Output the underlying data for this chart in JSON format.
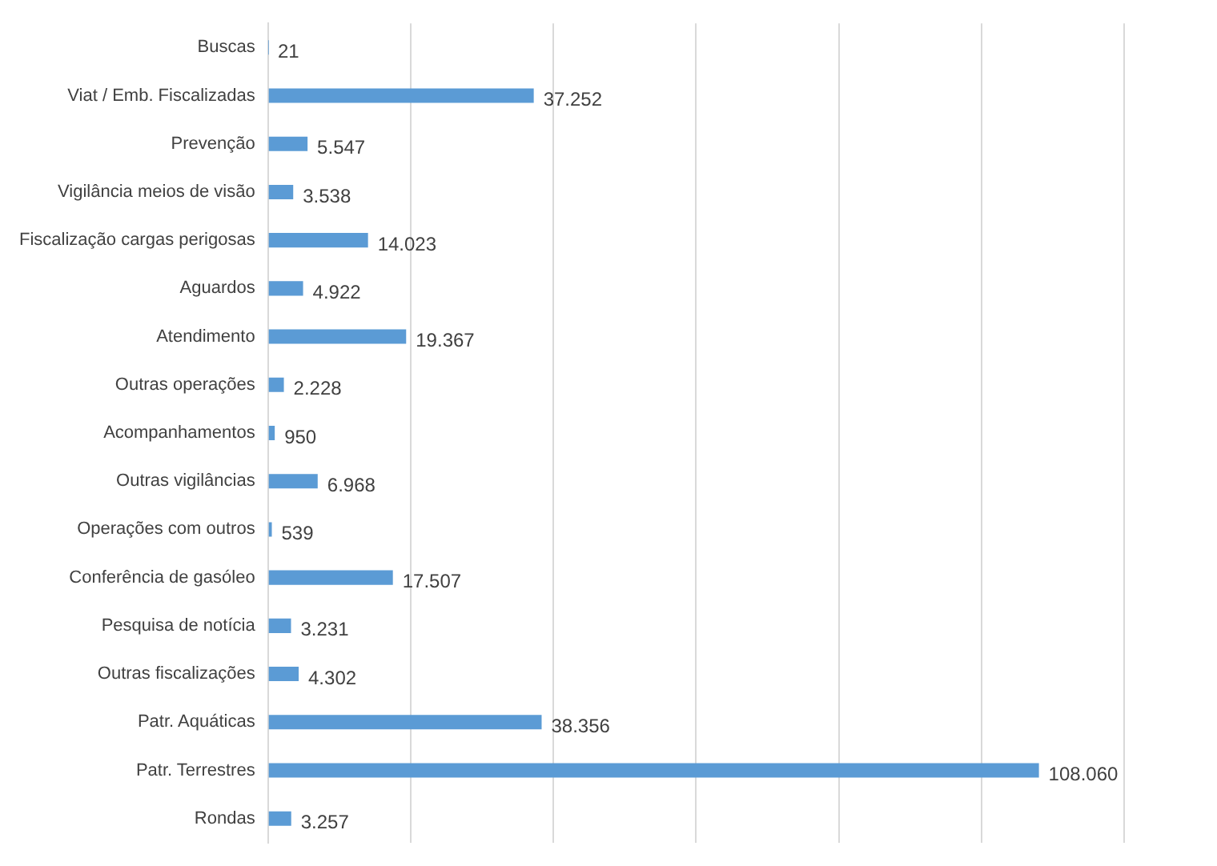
{
  "chart_data": {
    "type": "bar",
    "orientation": "horizontal",
    "categories": [
      "Buscas",
      "Viat / Emb. Fiscalizadas",
      "Prevenção",
      "Vigilância meios de visão",
      "Fiscalização cargas perigosas",
      "Aguardos",
      "Atendimento",
      "Outras operações",
      "Acompanhamentos",
      "Outras vigilâncias",
      "Operações com outros",
      "Conferência de gasóleo",
      "Pesquisa de notícia",
      "Outras fiscalizações",
      "Patr. Aquáticas",
      "Patr. Terrestres",
      "Rondas"
    ],
    "values": [
      21,
      37252,
      5547,
      3538,
      14023,
      4922,
      19367,
      2228,
      950,
      6968,
      539,
      17507,
      3231,
      4302,
      38356,
      108060,
      3257
    ],
    "value_labels": [
      "21",
      "37.252",
      "5.547",
      "3.538",
      "14.023",
      "4.922",
      "19.367",
      "2.228",
      "950",
      "6.968",
      "539",
      "17.507",
      "3.231",
      "4.302",
      "38.356",
      "108.060",
      "3.257"
    ],
    "color": "#5b9bd5",
    "xlim": [
      0,
      120000
    ],
    "xticks": [
      {
        "value": 0,
        "label": null
      },
      {
        "value": 20000,
        "label": null
      },
      {
        "value": 40000,
        "label": null
      },
      {
        "value": 60000,
        "label": null
      },
      {
        "value": 80000,
        "label": null
      },
      {
        "value": 100000,
        "label": null
      },
      {
        "value": 120000,
        "label": null
      }
    ],
    "tick_labels": "y",
    "grid": "x",
    "legend": false
  }
}
